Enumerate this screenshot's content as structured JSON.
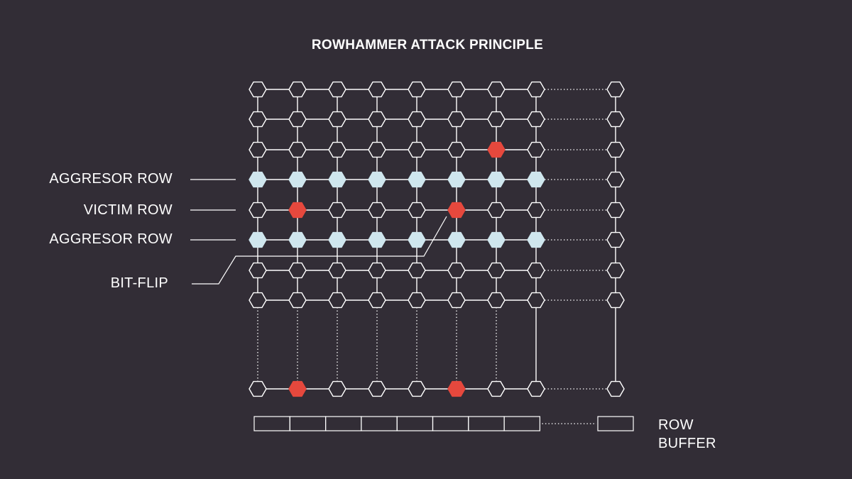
{
  "title": "ROWHAMMER ATTACK PRINCIPLE",
  "labels": {
    "aggressor_top": "AGGRESOR ROW",
    "victim": "VICTIM ROW",
    "aggressor_bottom": "AGGRESOR ROW",
    "bit_flip": "BIT-FLIP",
    "row_buffer_line1": "ROW",
    "row_buffer_line2": "BUFFER"
  },
  "colors": {
    "background": "#322d36",
    "line": "#ffffff",
    "aggressor_cell": "#cfe6ee",
    "flipped_cell": "#e6483d"
  },
  "grid": {
    "visible_rows": 9,
    "visible_columns": 9,
    "aggressor_rows": [
      4,
      6
    ],
    "victim_row": 5,
    "flipped_cells": [
      {
        "row": 3,
        "col": 7
      },
      {
        "row": 5,
        "col": 2
      },
      {
        "row": 5,
        "col": 6
      },
      {
        "row": 9,
        "col": 2
      },
      {
        "row": 9,
        "col": 6
      }
    ],
    "bit_flip_target": {
      "row": 5,
      "col": 6
    }
  },
  "row_buffer": {
    "visible_cells": 9
  }
}
